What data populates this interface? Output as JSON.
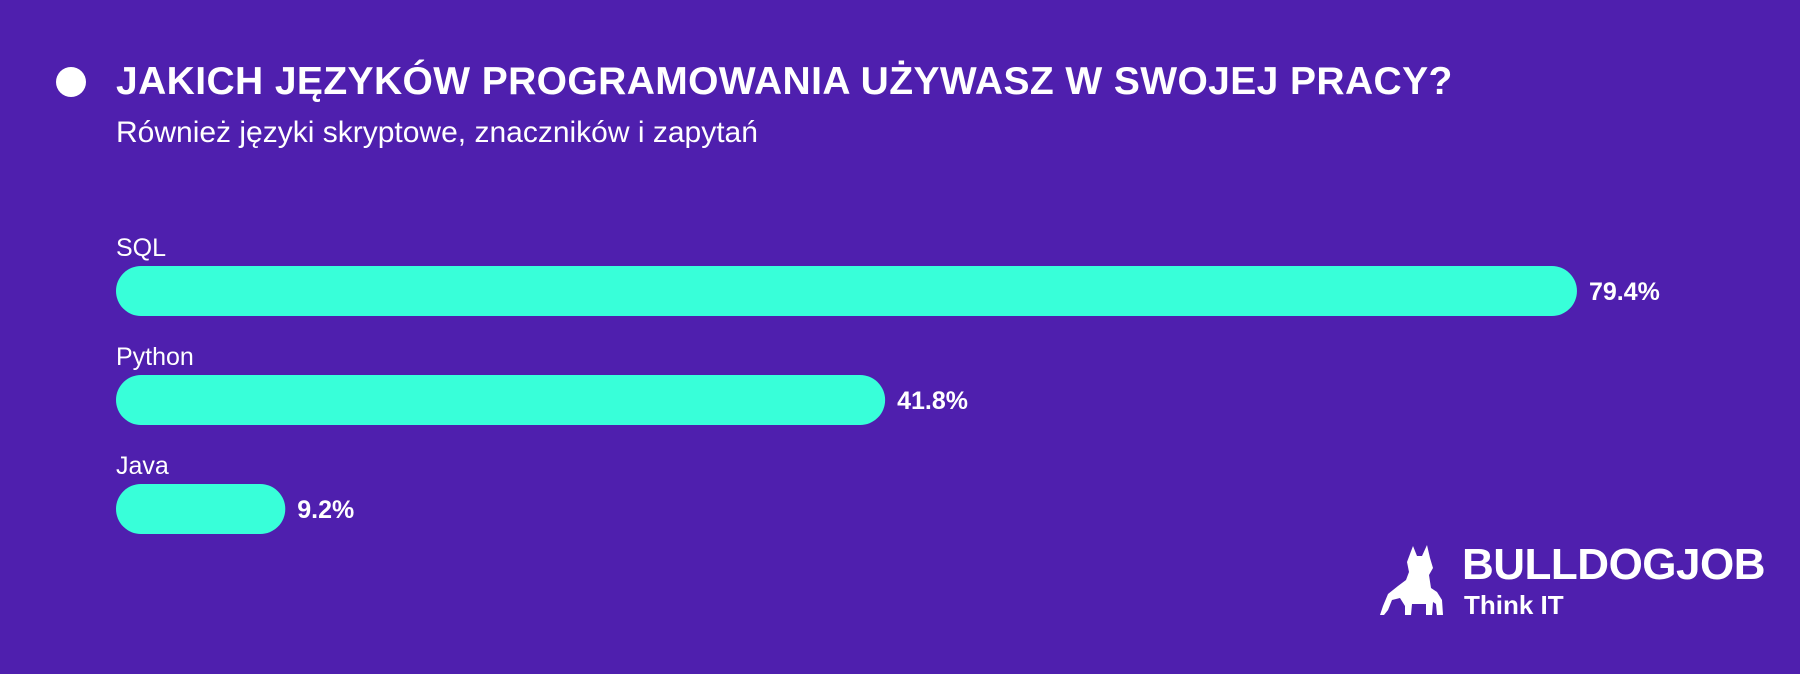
{
  "header": {
    "title": "JAKICH JĘZYKÓW PROGRAMOWANIA UŻYWASZ W SWOJEJ PRACY?",
    "subtitle": "Również języki skryptowe, znaczników i zapytań"
  },
  "colors": {
    "background": "#4f1fae",
    "bar": "#38ffd9",
    "text": "#ffffff"
  },
  "chart_data": {
    "type": "bar",
    "orientation": "horizontal",
    "categories": [
      "SQL",
      "Python",
      "Java"
    ],
    "values": [
      79.4,
      41.8,
      9.2
    ],
    "value_labels": [
      "79.4%",
      "41.8%",
      "9.2%"
    ],
    "unit": "%",
    "xlim": [
      0,
      100
    ],
    "grid": false,
    "legend": "none"
  },
  "logo": {
    "wordmark": "BULLDOGJOB",
    "tagline": "Think IT",
    "icon": "bulldog-icon"
  }
}
